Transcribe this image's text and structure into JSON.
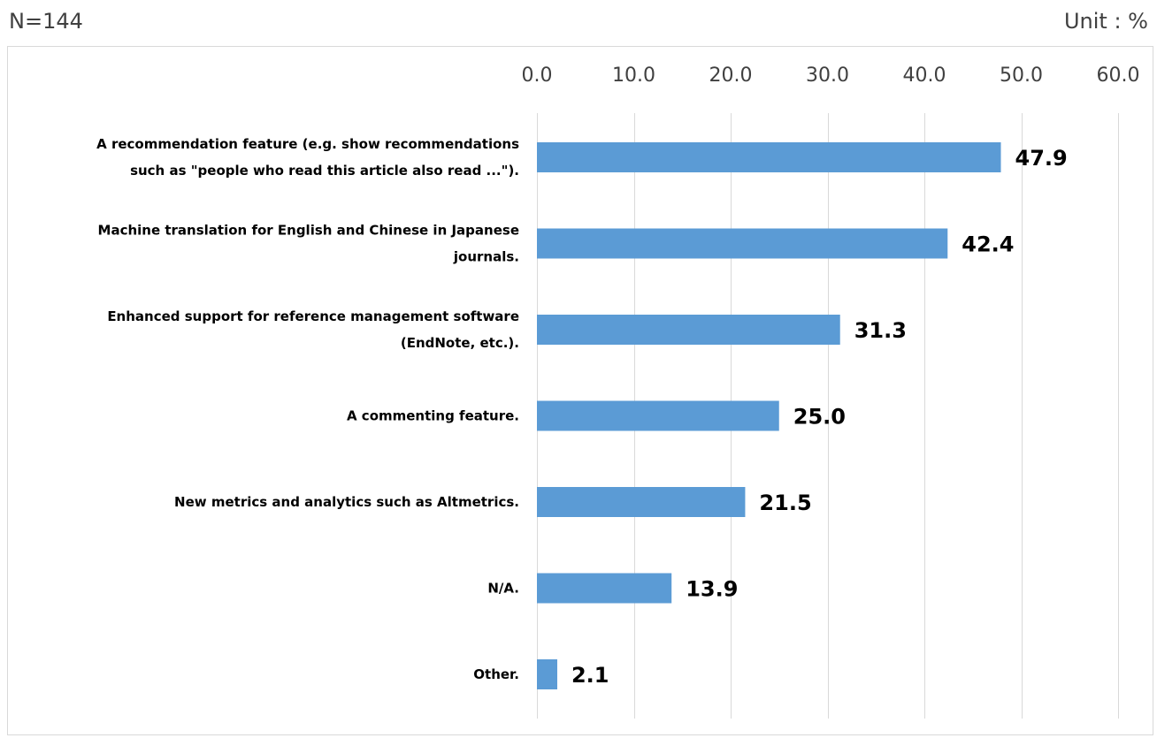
{
  "header": {
    "n_label": "N=144",
    "unit_label": "Unit : %"
  },
  "colors": {
    "bar": "#5b9bd5",
    "grid": "#d9d9d9"
  },
  "chart_data": {
    "type": "bar",
    "orientation": "horizontal",
    "categories": [
      [
        "A recommendation feature (e.g. show recommendations",
        "such as \"people who read this article also read ...\")."
      ],
      [
        "Machine translation for English and Chinese in Japanese",
        "journals."
      ],
      [
        "Enhanced support for reference management software",
        "(EndNote, etc.)."
      ],
      [
        "A commenting feature."
      ],
      [
        "New metrics and analytics such as Altmetrics."
      ],
      [
        "N/A."
      ],
      [
        "Other."
      ]
    ],
    "values": [
      47.9,
      42.4,
      31.3,
      25.0,
      21.5,
      13.9,
      2.1
    ],
    "value_labels": [
      "47.9",
      "42.4",
      "31.3",
      "25.0",
      "21.5",
      "13.9",
      "2.1"
    ],
    "xlim": [
      0,
      60
    ],
    "ticks": [
      0,
      10,
      20,
      30,
      40,
      50,
      60
    ],
    "tick_labels": [
      "0.0",
      "10.0",
      "20.0",
      "30.0",
      "40.0",
      "50.0",
      "60.0"
    ],
    "axis_position": "top",
    "grid": true,
    "legend": "none"
  }
}
